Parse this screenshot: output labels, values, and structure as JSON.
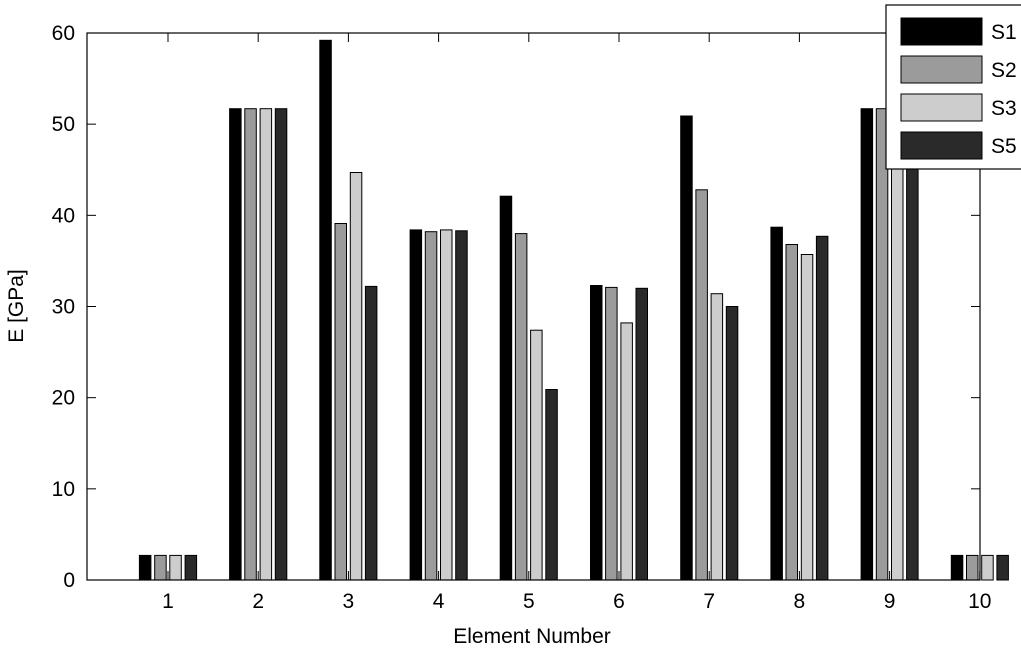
{
  "chart_data": {
    "type": "bar",
    "title": "",
    "xlabel": "Element Number",
    "ylabel": "E [GPa]",
    "ylim": [
      0,
      60
    ],
    "yticks": [
      0,
      10,
      20,
      30,
      40,
      50,
      60
    ],
    "grid": false,
    "legend_position": "top-right",
    "categories": [
      "1",
      "2",
      "3",
      "4",
      "5",
      "6",
      "7",
      "8",
      "9",
      "10"
    ],
    "series": [
      {
        "name": "S1",
        "color": "#000000",
        "values": [
          2.7,
          51.7,
          59.2,
          38.4,
          42.1,
          32.3,
          50.9,
          38.7,
          51.7,
          2.7
        ]
      },
      {
        "name": "S2",
        "color": "#9b9b9b",
        "values": [
          2.7,
          51.7,
          39.1,
          38.2,
          38.0,
          32.1,
          42.8,
          36.8,
          51.7,
          2.7
        ]
      },
      {
        "name": "S3",
        "color": "#cdcdcd",
        "values": [
          2.7,
          51.7,
          44.7,
          38.4,
          27.4,
          28.2,
          31.4,
          35.7,
          51.7,
          2.7
        ]
      },
      {
        "name": "S5",
        "color": "#2a2a2a",
        "values": [
          2.7,
          51.7,
          32.2,
          38.3,
          20.9,
          32.0,
          30.0,
          37.7,
          51.7,
          2.7
        ]
      }
    ]
  }
}
